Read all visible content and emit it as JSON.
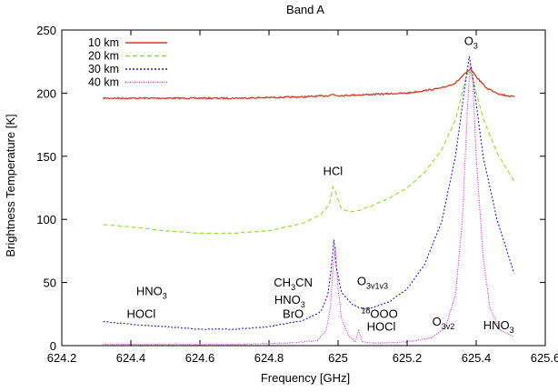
{
  "chart_data": {
    "type": "line",
    "title": "Band A",
    "xlabel": "Frequency [GHz]",
    "ylabel": "Brightness Temperature [K]",
    "xlim": [
      624.2,
      625.6
    ],
    "ylim": [
      0,
      250
    ],
    "x_ticks": [
      "624.2",
      "624.4",
      "624.6",
      "624.8",
      "625",
      "625.2",
      "625.4",
      "625.6"
    ],
    "y_ticks": [
      "0",
      "50",
      "100",
      "150",
      "200",
      "250"
    ],
    "grid": false,
    "legend_position": "top-left",
    "series": [
      {
        "name": "10 km",
        "color": "#d23b1f",
        "dash": "solid",
        "points": [
          [
            624.32,
            196
          ],
          [
            624.5,
            196
          ],
          [
            624.7,
            196
          ],
          [
            624.9,
            197
          ],
          [
            624.97,
            198
          ],
          [
            624.985,
            199
          ],
          [
            625.0,
            198
          ],
          [
            625.1,
            199
          ],
          [
            625.2,
            200
          ],
          [
            625.3,
            204
          ],
          [
            625.34,
            208
          ],
          [
            625.37,
            216
          ],
          [
            625.385,
            219
          ],
          [
            625.4,
            213
          ],
          [
            625.43,
            204
          ],
          [
            625.47,
            199
          ],
          [
            625.51,
            197
          ]
        ]
      },
      {
        "name": "20 km",
        "color": "#8fe02a",
        "dash": "dashed",
        "points": [
          [
            624.32,
            96
          ],
          [
            624.4,
            94
          ],
          [
            624.5,
            91
          ],
          [
            624.6,
            89
          ],
          [
            624.7,
            89
          ],
          [
            624.8,
            91
          ],
          [
            624.9,
            97
          ],
          [
            624.95,
            104
          ],
          [
            624.975,
            112
          ],
          [
            624.985,
            126
          ],
          [
            624.995,
            120
          ],
          [
            625.01,
            108
          ],
          [
            625.04,
            106
          ],
          [
            625.06,
            107
          ],
          [
            625.1,
            111
          ],
          [
            625.15,
            117
          ],
          [
            625.2,
            125
          ],
          [
            625.25,
            137
          ],
          [
            625.3,
            155
          ],
          [
            625.34,
            179
          ],
          [
            625.37,
            212
          ],
          [
            625.38,
            219
          ],
          [
            625.39,
            211
          ],
          [
            625.42,
            180
          ],
          [
            625.46,
            153
          ],
          [
            625.51,
            130
          ]
        ]
      },
      {
        "name": "30 km",
        "color": "#2323cc",
        "dash": "dotted",
        "points": [
          [
            624.32,
            19
          ],
          [
            624.4,
            17
          ],
          [
            624.5,
            15
          ],
          [
            624.6,
            13
          ],
          [
            624.7,
            13
          ],
          [
            624.8,
            15
          ],
          [
            624.9,
            20
          ],
          [
            624.95,
            27
          ],
          [
            624.97,
            40
          ],
          [
            624.98,
            60
          ],
          [
            624.988,
            84
          ],
          [
            624.995,
            62
          ],
          [
            625.01,
            42
          ],
          [
            625.04,
            33
          ],
          [
            625.06,
            30
          ],
          [
            625.08,
            29
          ],
          [
            625.1,
            30
          ],
          [
            625.15,
            35
          ],
          [
            625.2,
            45
          ],
          [
            625.25,
            64
          ],
          [
            625.3,
            98
          ],
          [
            625.34,
            150
          ],
          [
            625.37,
            211
          ],
          [
            625.38,
            229
          ],
          [
            625.39,
            213
          ],
          [
            625.42,
            150
          ],
          [
            625.46,
            100
          ],
          [
            625.51,
            57
          ]
        ]
      },
      {
        "name": "40 km",
        "color": "#e023e0",
        "dash": "dotted-fine",
        "points": [
          [
            624.32,
            1
          ],
          [
            624.5,
            1
          ],
          [
            624.7,
            1
          ],
          [
            624.85,
            2
          ],
          [
            624.94,
            4
          ],
          [
            624.965,
            12
          ],
          [
            624.978,
            30
          ],
          [
            624.985,
            60
          ],
          [
            624.992,
            78
          ],
          [
            625.0,
            45
          ],
          [
            625.01,
            22
          ],
          [
            625.03,
            8
          ],
          [
            625.05,
            3
          ],
          [
            625.06,
            12
          ],
          [
            625.07,
            3
          ],
          [
            625.1,
            2
          ],
          [
            625.2,
            3
          ],
          [
            625.27,
            6
          ],
          [
            625.31,
            14
          ],
          [
            625.34,
            40
          ],
          [
            625.36,
            100
          ],
          [
            625.375,
            190
          ],
          [
            625.383,
            224
          ],
          [
            625.39,
            210
          ],
          [
            625.4,
            150
          ],
          [
            625.42,
            70
          ],
          [
            625.44,
            30
          ],
          [
            625.47,
            12
          ],
          [
            625.51,
            7
          ]
        ]
      }
    ],
    "annotations": [
      {
        "id": "o3",
        "text": "O",
        "sub": "3",
        "x": 625.385,
        "y": 238
      },
      {
        "id": "hcl",
        "text": "HCl",
        "x": 624.985,
        "y": 135
      },
      {
        "id": "ch3cn",
        "text": "CH",
        "sub": "3",
        "text2": "CN",
        "x": 624.87,
        "y": 47
      },
      {
        "id": "hno3-mid",
        "text": "HNO",
        "sub": "3",
        "x": 624.86,
        "y": 33
      },
      {
        "id": "bro",
        "text": "BrO",
        "x": 624.87,
        "y": 22
      },
      {
        "id": "hno3-left",
        "text": "HNO",
        "sub": "3",
        "x": 624.46,
        "y": 40
      },
      {
        "id": "hocl-left",
        "text": "HOCl",
        "x": 624.43,
        "y": 22
      },
      {
        "id": "o3v1v3",
        "text": "O",
        "sub": "3v1v3",
        "x": 625.1,
        "y": 48
      },
      {
        "id": "18ooo",
        "text": "OOO",
        "sup": "18",
        "x": 625.12,
        "y": 22
      },
      {
        "id": "hocl-right",
        "text": "HOCl",
        "x": 625.125,
        "y": 12
      },
      {
        "id": "o3v2",
        "text": "O",
        "sub": "3v2",
        "x": 625.305,
        "y": 16
      },
      {
        "id": "hno3-right",
        "text": "HNO",
        "sub": "3",
        "x": 625.465,
        "y": 13
      }
    ]
  }
}
